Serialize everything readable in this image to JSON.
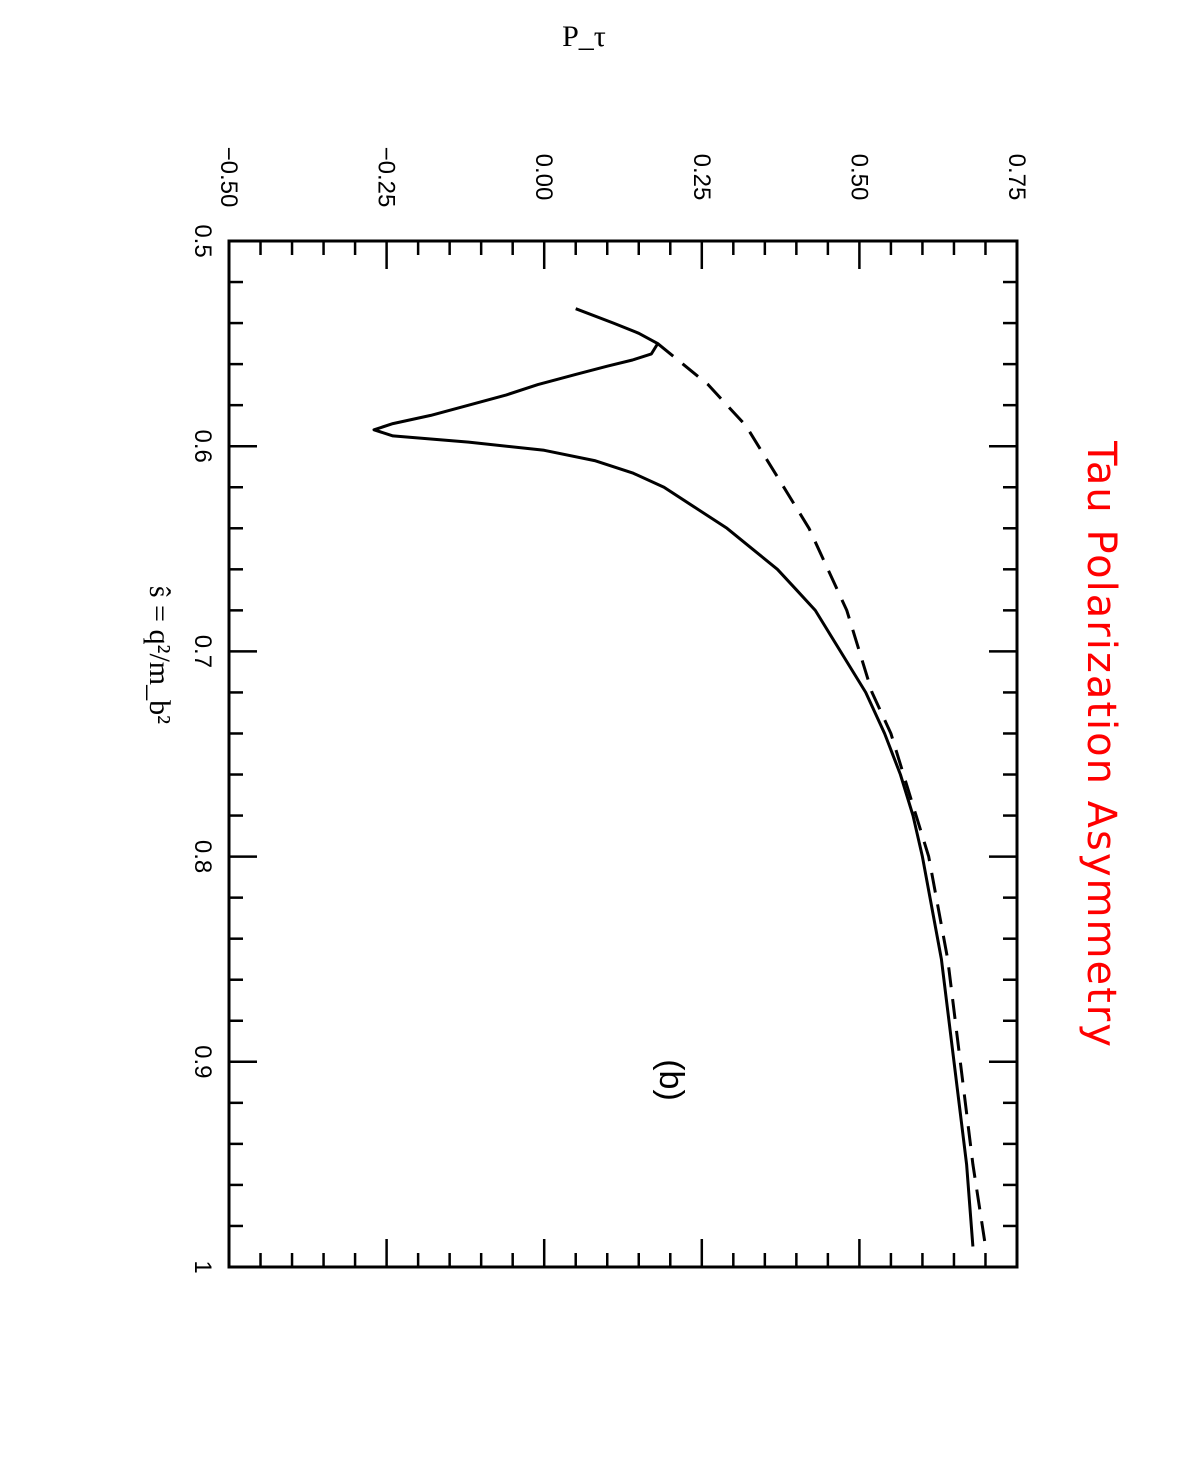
{
  "handwritten_title": "Tau Polarization Asymmetry",
  "colors": {
    "title": "#ff0000",
    "ink": "#000000",
    "background": "#ffffff"
  },
  "chart_data": {
    "type": "line",
    "orientation": "rotated 90 degrees clockwise (x axis runs top to bottom, y axis runs left to right)",
    "xlabel": "ŝ = q²/m_b²",
    "ylabel": "P_τ",
    "xlim": [
      0.5,
      1.0
    ],
    "ylim": [
      -0.5,
      0.75
    ],
    "x_ticks": [
      "0.5",
      "0.6",
      "0.7",
      "0.8",
      "0.9",
      "1"
    ],
    "y_ticks": [
      "-0.50",
      "-0.25",
      "0.00",
      "0.25",
      "0.50",
      "0.75"
    ],
    "grid": false,
    "panel_label": "(b)",
    "series": [
      {
        "style": "solid",
        "x": [
          0.533,
          0.54,
          0.545,
          0.55,
          0.555,
          0.558,
          0.561,
          0.565,
          0.57,
          0.575,
          0.58,
          0.585,
          0.589,
          0.592,
          0.595,
          0.598,
          0.602,
          0.607,
          0.613,
          0.62,
          0.63,
          0.64,
          0.65,
          0.66,
          0.67,
          0.68,
          0.69,
          0.7,
          0.72,
          0.74,
          0.76,
          0.78,
          0.8,
          0.85,
          0.9,
          0.95,
          0.99
        ],
        "y": [
          0.05,
          0.11,
          0.15,
          0.18,
          0.17,
          0.14,
          0.1,
          0.05,
          -0.01,
          -0.06,
          -0.12,
          -0.18,
          -0.24,
          -0.27,
          -0.24,
          -0.12,
          0.0,
          0.08,
          0.14,
          0.19,
          0.24,
          0.29,
          0.33,
          0.37,
          0.4,
          0.43,
          0.45,
          0.47,
          0.51,
          0.54,
          0.565,
          0.585,
          0.6,
          0.63,
          0.65,
          0.67,
          0.68
        ]
      },
      {
        "style": "dashed",
        "x": [
          0.55,
          0.56,
          0.57,
          0.58,
          0.59,
          0.6,
          0.62,
          0.64,
          0.66,
          0.68,
          0.7,
          0.72,
          0.74,
          0.76,
          0.78,
          0.8,
          0.85,
          0.9,
          0.95,
          0.99
        ],
        "y": [
          0.18,
          0.22,
          0.26,
          0.29,
          0.32,
          0.34,
          0.38,
          0.42,
          0.45,
          0.48,
          0.5,
          0.52,
          0.55,
          0.57,
          0.59,
          0.61,
          0.64,
          0.66,
          0.68,
          0.7
        ]
      }
    ]
  }
}
